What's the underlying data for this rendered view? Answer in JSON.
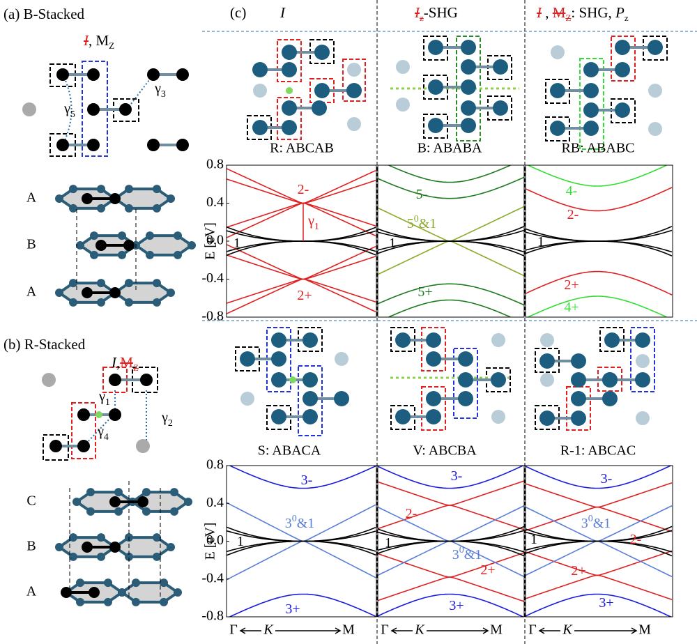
{
  "panel_a": {
    "label": "(a) B-Stacked",
    "symmetry": [
      "I",
      ", M",
      "Z"
    ],
    "couplings": [
      [
        "γ",
        "5"
      ],
      [
        "γ",
        "3"
      ]
    ],
    "layers": [
      "A",
      "B",
      "A"
    ]
  },
  "panel_b": {
    "label": "(b) R-Stacked",
    "symmetry": [
      "I",
      ",",
      "M",
      "Z"
    ],
    "couplings": [
      [
        "γ",
        "1"
      ],
      [
        "γ",
        "4"
      ],
      [
        "γ",
        "2"
      ]
    ],
    "layers": [
      "C",
      "B",
      "A"
    ]
  },
  "panel_c": {
    "label": "(c)",
    "headers": [
      [
        "I"
      ],
      [
        "I",
        "z",
        "-SHG"
      ],
      [
        "I",
        " , ",
        "M",
        "Z",
        ": SHG, ",
        "P",
        "z"
      ]
    ],
    "stackings": [
      "R: ABCAB",
      "B: ABABA",
      "RB: ABABC",
      "S: ABACA",
      "V: ABCBA",
      "R-1: ABCAC"
    ],
    "plots": [
      {
        "annotations": [
          [
            "2-"
          ],
          [
            "γ",
            "1"
          ],
          [
            "1"
          ],
          [
            "2+"
          ]
        ]
      },
      {
        "annotations": [
          [
            "5-"
          ],
          [
            "5",
            "0",
            "&1"
          ],
          [
            "1"
          ],
          [
            "5+"
          ]
        ]
      },
      {
        "annotations": [
          [
            "4-"
          ],
          [
            "2-"
          ],
          [
            "1"
          ],
          [
            "2+"
          ],
          [
            "4+"
          ]
        ]
      },
      {
        "annotations": [
          [
            "3-"
          ],
          [
            "3",
            "0",
            "&1"
          ],
          [
            "1"
          ],
          [
            "3+"
          ]
        ]
      },
      {
        "annotations": [
          [
            "3-"
          ],
          [
            "2-"
          ],
          [
            "1"
          ],
          [
            "3",
            "0",
            "&1"
          ],
          [
            "2+"
          ],
          [
            "3+"
          ]
        ]
      },
      {
        "annotations": [
          [
            "3-"
          ],
          [
            "3",
            "0",
            "&1"
          ],
          [
            "2-"
          ],
          [
            "1"
          ],
          [
            "2+"
          ],
          [
            "3+"
          ]
        ]
      }
    ],
    "y_axis": {
      "label": "E [eV]",
      "ticks": [
        "0.8",
        "0.4",
        "0.0",
        "-0.4",
        "-0.8"
      ]
    },
    "k_path": [
      "Γ",
      "K",
      "M"
    ]
  }
}
